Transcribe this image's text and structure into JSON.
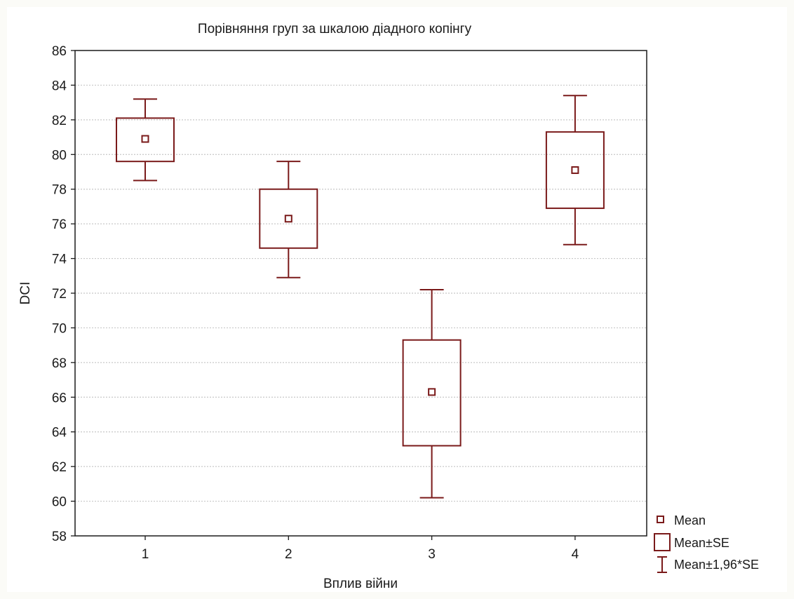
{
  "chart_data": {
    "type": "box",
    "title": "Порівняння груп за шкалою діадного копінгу",
    "xlabel": "Вплив війни",
    "ylabel": "DCI",
    "ylim": [
      58,
      86
    ],
    "yticks": [
      58,
      60,
      62,
      64,
      66,
      68,
      70,
      72,
      74,
      76,
      78,
      80,
      82,
      84,
      86
    ],
    "categories": [
      "1",
      "2",
      "3",
      "4"
    ],
    "series": [
      {
        "name": "Mean",
        "values": [
          80.9,
          76.3,
          66.3,
          79.1
        ]
      },
      {
        "name": "Mean±SE",
        "low": [
          79.6,
          74.6,
          63.2,
          76.9
        ],
        "high": [
          82.1,
          78.0,
          69.3,
          81.3
        ]
      },
      {
        "name": "Mean±1,96*SE",
        "low": [
          78.5,
          72.9,
          60.2,
          74.8
        ],
        "high": [
          83.2,
          79.6,
          72.2,
          83.4
        ]
      }
    ],
    "grid": true,
    "legend_position": "bottom-right",
    "colors": {
      "marks": "#7a1a1a",
      "grid": "#c8c8c8",
      "axis": "#1a1a1a"
    }
  }
}
